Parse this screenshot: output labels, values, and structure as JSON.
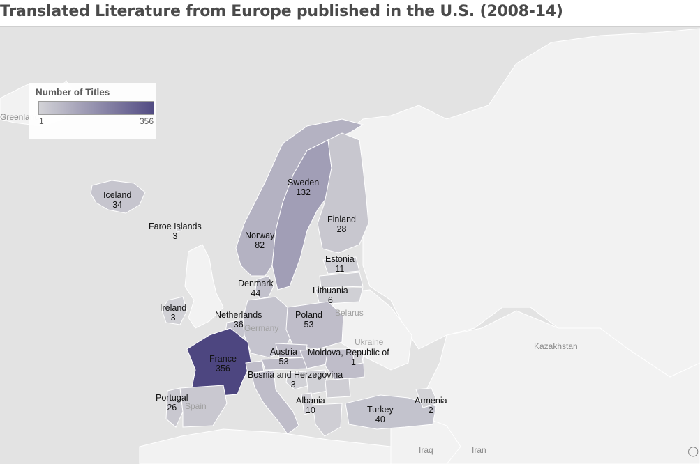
{
  "title": "Translated Literature from Europe published in the U.S. (2008-14)",
  "legend": {
    "title": "Number of Titles",
    "min": "1",
    "max": "356",
    "color_low": "#d2d2d6",
    "color_high": "#4d4680"
  },
  "countries": [
    {
      "name": "Iceland",
      "value": 34
    },
    {
      "name": "Faroe Islands",
      "value": 3
    },
    {
      "name": "Sweden",
      "value": 132
    },
    {
      "name": "Finland",
      "value": 28
    },
    {
      "name": "Norway",
      "value": 82
    },
    {
      "name": "Estonia",
      "value": 11
    },
    {
      "name": "Denmark",
      "value": 44
    },
    {
      "name": "Lithuania",
      "value": 6
    },
    {
      "name": "Ireland",
      "value": 3
    },
    {
      "name": "Netherlands",
      "value": 36
    },
    {
      "name": "Poland",
      "value": 53
    },
    {
      "name": "Austria",
      "value": 53
    },
    {
      "name": "Moldova, Republic of",
      "value": 1
    },
    {
      "name": "France",
      "value": 356
    },
    {
      "name": "Bosnia and Herzegovina",
      "value": 3
    },
    {
      "name": "Portugal",
      "value": 26
    },
    {
      "name": "Albania",
      "value": 10
    },
    {
      "name": "Turkey",
      "value": 40
    },
    {
      "name": "Armenia",
      "value": 2
    }
  ],
  "background_labels": [
    "Greenland",
    "Kazakhstan",
    "Germany",
    "Belarus",
    "Ukraine",
    "Spain",
    "Iraq",
    "Iran"
  ]
}
